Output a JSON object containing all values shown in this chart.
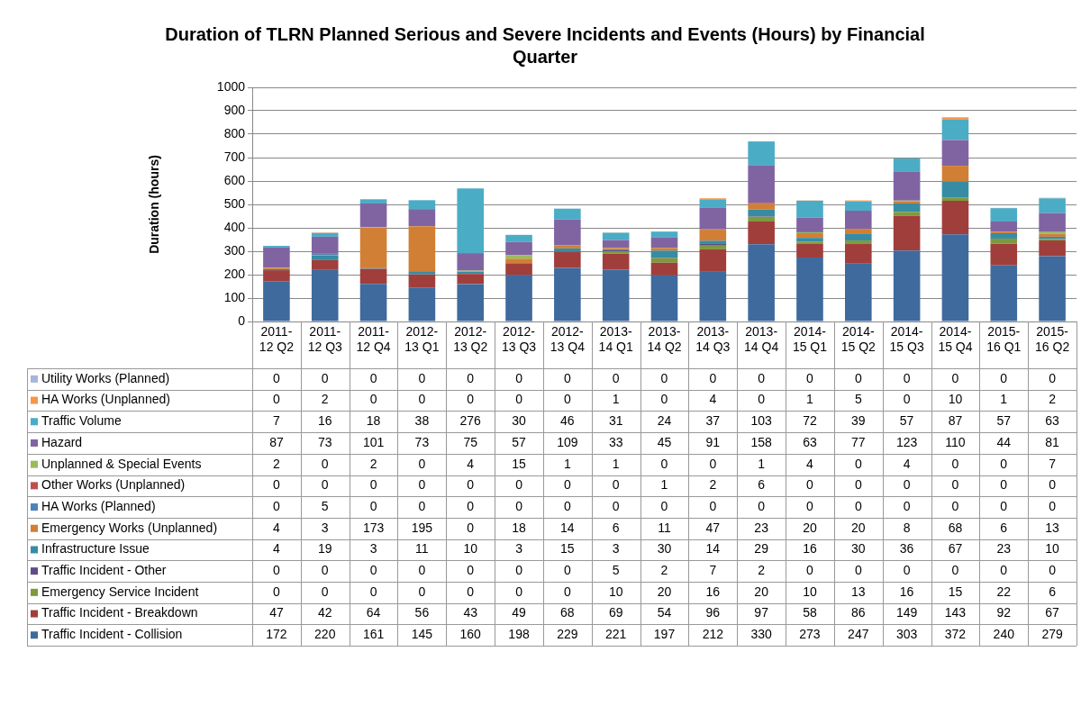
{
  "chart_data": {
    "type": "bar",
    "stacked": true,
    "title": "Duration of TLRN Planned Serious and Severe Incidents and Events (Hours) by Financial Quarter",
    "ylabel": "Duration (hours)",
    "categories": [
      "2011-12 Q2",
      "2011-12 Q3",
      "2011-12 Q4",
      "2012-13 Q1",
      "2012-13 Q2",
      "2012-13 Q3",
      "2012-13 Q4",
      "2013-14 Q1",
      "2013-14 Q2",
      "2013-14 Q3",
      "2013-14 Q4",
      "2014-15 Q1",
      "2014-15 Q2",
      "2014-15 Q3",
      "2014-15 Q4",
      "2015-16 Q1",
      "2015-16 Q2"
    ],
    "ylim": [
      0,
      1000
    ],
    "yticks": [
      0,
      100,
      200,
      300,
      400,
      500,
      600,
      700,
      800,
      900,
      1000
    ],
    "grid": "y",
    "legend": "bottom",
    "data_labels": true,
    "series": [
      {
        "name": "Traffic Incident - Collision",
        "color": "#3f6a9d",
        "values": [
          172,
          220,
          161,
          145,
          160,
          198,
          229,
          221,
          197,
          212,
          330,
          273,
          247,
          303,
          372,
          240,
          279
        ]
      },
      {
        "name": "Traffic Incident - Breakdown",
        "color": "#a03e3c",
        "values": [
          47,
          42,
          64,
          56,
          43,
          49,
          68,
          69,
          54,
          96,
          97,
          58,
          86,
          149,
          143,
          92,
          67
        ]
      },
      {
        "name": "Emergency Service Incident",
        "color": "#7e9a3e",
        "values": [
          0,
          0,
          0,
          0,
          0,
          0,
          0,
          10,
          20,
          16,
          20,
          10,
          13,
          16,
          15,
          22,
          6
        ]
      },
      {
        "name": "Traffic Incident - Other",
        "color": "#5f4b87",
        "values": [
          0,
          0,
          0,
          0,
          0,
          0,
          0,
          5,
          2,
          7,
          2,
          0,
          0,
          0,
          0,
          0,
          0
        ]
      },
      {
        "name": "Infrastructure Issue",
        "color": "#378ca3",
        "values": [
          4,
          19,
          3,
          11,
          10,
          3,
          15,
          3,
          30,
          14,
          29,
          16,
          30,
          36,
          67,
          23,
          10
        ]
      },
      {
        "name": "Emergency Works (Unplanned)",
        "color": "#d17f34",
        "values": [
          4,
          3,
          173,
          195,
          0,
          18,
          14,
          6,
          11,
          47,
          23,
          20,
          20,
          8,
          68,
          6,
          13
        ]
      },
      {
        "name": "HA Works (Planned)",
        "color": "#4f81bd",
        "values": [
          0,
          5,
          0,
          0,
          0,
          0,
          0,
          0,
          0,
          0,
          0,
          0,
          0,
          0,
          0,
          0,
          0
        ]
      },
      {
        "name": "Other Works (Unplanned)",
        "color": "#c0504d",
        "values": [
          0,
          0,
          0,
          0,
          0,
          0,
          0,
          0,
          1,
          2,
          6,
          0,
          0,
          0,
          0,
          0,
          0
        ]
      },
      {
        "name": "Unplanned & Special Events",
        "color": "#9bbb59",
        "values": [
          2,
          0,
          2,
          0,
          4,
          15,
          1,
          1,
          0,
          0,
          1,
          4,
          0,
          4,
          0,
          0,
          7
        ]
      },
      {
        "name": "Hazard",
        "color": "#8064a2",
        "values": [
          87,
          73,
          101,
          73,
          75,
          57,
          109,
          33,
          45,
          91,
          158,
          63,
          77,
          123,
          110,
          44,
          81
        ]
      },
      {
        "name": "Traffic Volume",
        "color": "#4bacc6",
        "values": [
          7,
          16,
          18,
          38,
          276,
          30,
          46,
          31,
          24,
          37,
          103,
          72,
          39,
          57,
          87,
          57,
          63
        ]
      },
      {
        "name": "HA Works (Unplanned)",
        "color": "#f79646",
        "values": [
          0,
          2,
          0,
          0,
          0,
          0,
          0,
          1,
          0,
          4,
          0,
          1,
          5,
          0,
          10,
          1,
          2
        ]
      },
      {
        "name": "Utility Works (Planned)",
        "color": "#a5b6da",
        "values": [
          0,
          0,
          0,
          0,
          0,
          0,
          0,
          0,
          0,
          0,
          0,
          0,
          0,
          0,
          0,
          0,
          0
        ]
      }
    ]
  }
}
